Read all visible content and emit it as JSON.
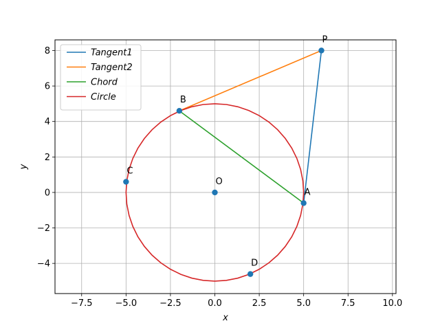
{
  "chart_data": {
    "type": "line",
    "title": "",
    "xlabel": "x",
    "ylabel": "y",
    "xlim": [
      -9,
      10.2
    ],
    "ylim": [
      -5.7,
      8.6
    ],
    "grid": true,
    "legend_position": "top-left",
    "x_ticks": [
      -7.5,
      -5.0,
      -2.5,
      0.0,
      2.5,
      5.0,
      7.5,
      10.0
    ],
    "x_tick_labels": [
      "−7.5",
      "−5.0",
      "−2.5",
      "0.0",
      "2.5",
      "5.0",
      "7.5",
      "10.0"
    ],
    "y_ticks": [
      -4,
      -2,
      0,
      2,
      4,
      6,
      8
    ],
    "y_tick_labels": [
      "−4",
      "−2",
      "0",
      "2",
      "4",
      "6",
      "8"
    ],
    "series": [
      {
        "name": "Tangent1",
        "color": "#1f77b4",
        "x": [
          6,
          5
        ],
        "y": [
          8,
          -0.6
        ]
      },
      {
        "name": "Tangent2",
        "color": "#ff7f0e",
        "x": [
          6,
          -2
        ],
        "y": [
          8,
          4.6
        ]
      },
      {
        "name": "Chord",
        "color": "#2ca02c",
        "x": [
          -2,
          5
        ],
        "y": [
          4.6,
          -0.6
        ]
      },
      {
        "name": "Circle",
        "color": "#d62728",
        "center": [
          0,
          0
        ],
        "radius": 5
      }
    ],
    "points": {
      "color": "#1f77b4",
      "items": [
        {
          "label": "P",
          "x": 6,
          "y": 8
        },
        {
          "label": "B",
          "x": -2,
          "y": 4.6
        },
        {
          "label": "C",
          "x": -5,
          "y": 0.6
        },
        {
          "label": "O",
          "x": 0,
          "y": 0
        },
        {
          "label": "A",
          "x": 5,
          "y": -0.6
        },
        {
          "label": "D",
          "x": 2,
          "y": -4.6
        }
      ]
    }
  }
}
